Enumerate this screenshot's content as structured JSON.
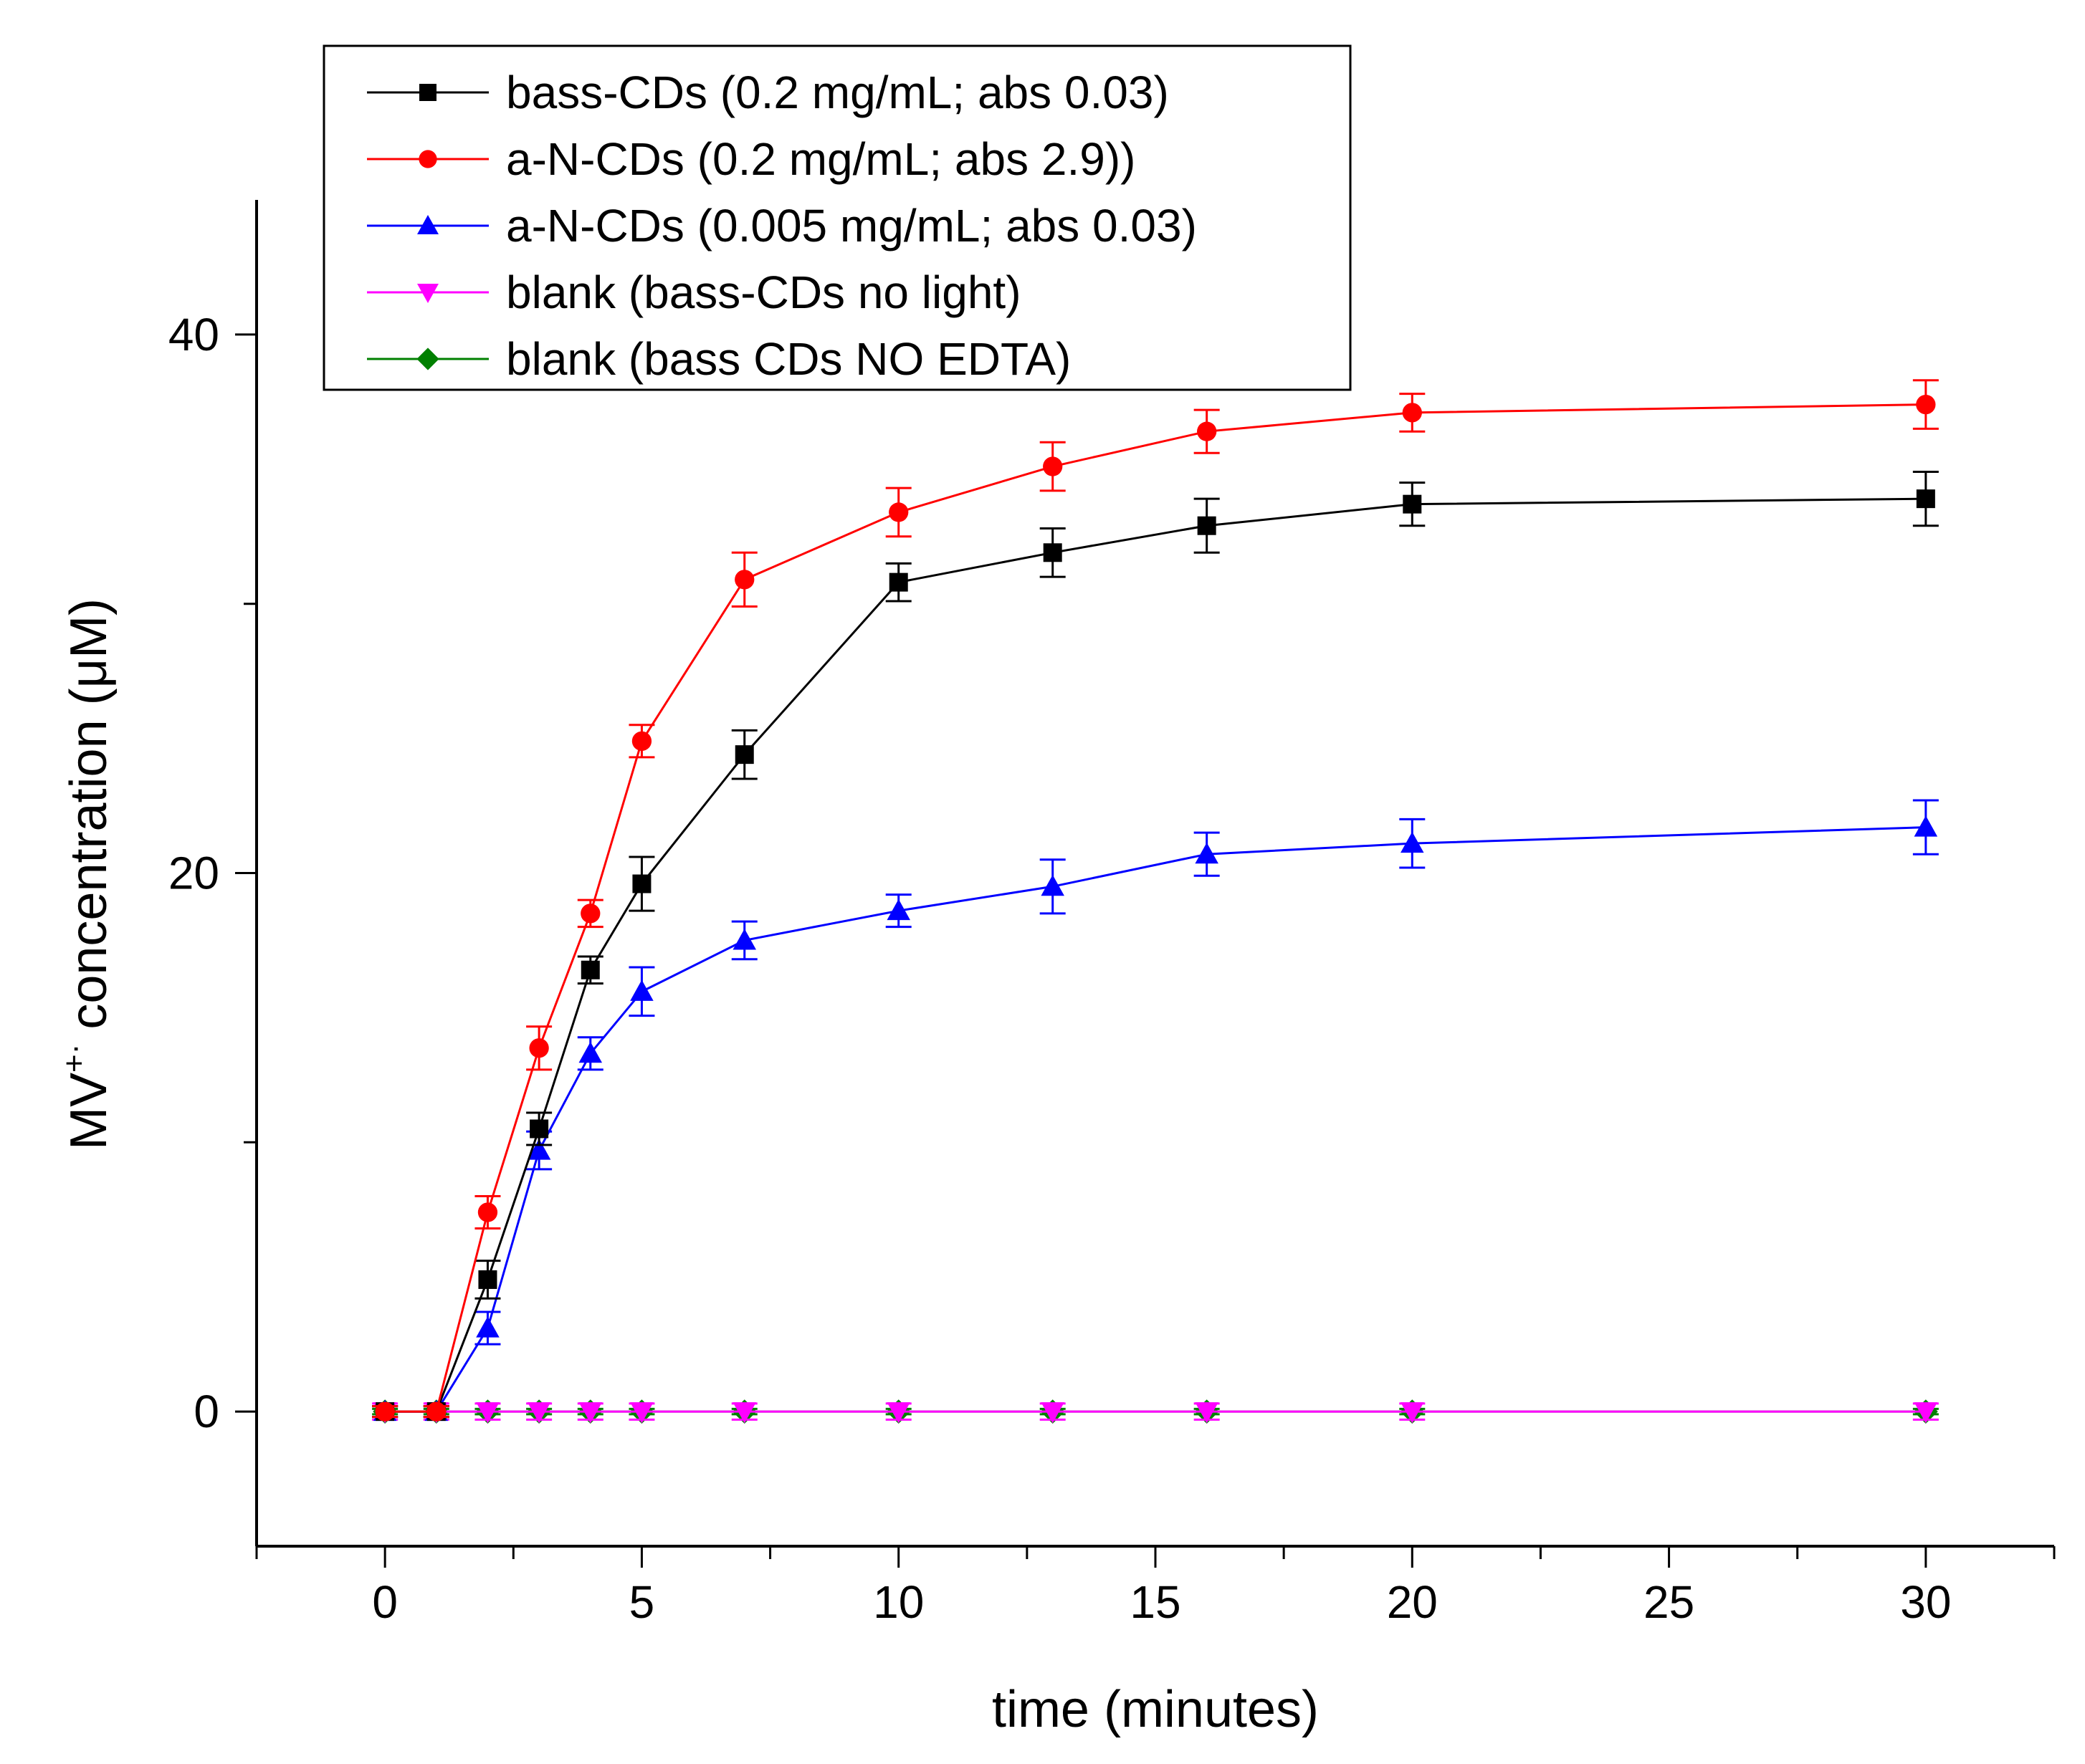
{
  "chart_data": {
    "type": "line",
    "title": "",
    "xlabel": "time (minutes)",
    "ylabel_base": "MV",
    "ylabel_sup": "+·",
    "ylabel_rest": " concentration (μM)",
    "xlim": [
      -2.5,
      32.5
    ],
    "ylim": [
      -5,
      45
    ],
    "x_ticks": [
      0,
      5,
      10,
      15,
      20,
      25,
      30
    ],
    "y_ticks": [
      0,
      20,
      40
    ],
    "x_tick_labels": [
      "0",
      "5",
      "10",
      "15",
      "20",
      "25",
      "30"
    ],
    "y_tick_labels": [
      "0",
      "20",
      "40"
    ],
    "x": [
      0,
      1,
      2,
      3,
      4,
      5,
      7,
      10,
      13,
      16,
      20,
      30
    ],
    "legend_position": "top-left",
    "series": [
      {
        "name": "bass-CDs (0.2 mg/mL; abs 0.03)",
        "color": "#000000",
        "marker": "square",
        "values": [
          0,
          0,
          4.9,
          10.5,
          16.4,
          19.6,
          24.4,
          30.8,
          31.9,
          32.9,
          33.7,
          33.9
        ],
        "errors": [
          0.2,
          0.2,
          0.7,
          0.6,
          0.5,
          1.0,
          0.9,
          0.7,
          0.9,
          1.0,
          0.8,
          1.0
        ]
      },
      {
        "name": "a-N-CDs (0.2 mg/mL; abs 2.9))",
        "color": "#ff0000",
        "marker": "circle",
        "values": [
          0,
          0,
          7.4,
          13.5,
          18.5,
          24.9,
          30.9,
          33.4,
          35.1,
          36.4,
          37.1,
          37.4
        ],
        "errors": [
          0.2,
          0.2,
          0.6,
          0.8,
          0.5,
          0.6,
          1.0,
          0.9,
          0.9,
          0.8,
          0.7,
          0.9
        ]
      },
      {
        "name": "a-N-CDs (0.005 mg/mL; abs 0.03)",
        "color": "#0000ff",
        "marker": "triangle-up",
        "values": [
          0,
          0,
          3.1,
          9.7,
          13.3,
          15.6,
          17.5,
          18.6,
          19.5,
          20.7,
          21.1,
          21.7
        ],
        "errors": [
          0.2,
          0.2,
          0.6,
          0.7,
          0.6,
          0.9,
          0.7,
          0.6,
          1.0,
          0.8,
          0.9,
          1.0
        ]
      },
      {
        "name": "blank (bass-CDs no light)",
        "color": "#ff00ff",
        "marker": "triangle-down",
        "values": [
          0,
          0,
          0,
          0,
          0,
          0,
          0,
          0,
          0,
          0,
          0,
          0
        ],
        "errors": [
          0.3,
          0.3,
          0.3,
          0.3,
          0.3,
          0.3,
          0.3,
          0.3,
          0.3,
          0.3,
          0.3,
          0.3
        ]
      },
      {
        "name": "blank (bass CDs NO EDTA)",
        "color": "#008000",
        "marker": "diamond",
        "values": [
          0,
          0,
          0,
          0,
          0,
          0,
          0,
          0,
          0,
          0,
          0,
          0
        ],
        "errors": [
          0.1,
          0.1,
          0.1,
          0.1,
          0.1,
          0.1,
          0.1,
          0.1,
          0.1,
          0.1,
          0.1,
          0.1
        ]
      }
    ]
  }
}
